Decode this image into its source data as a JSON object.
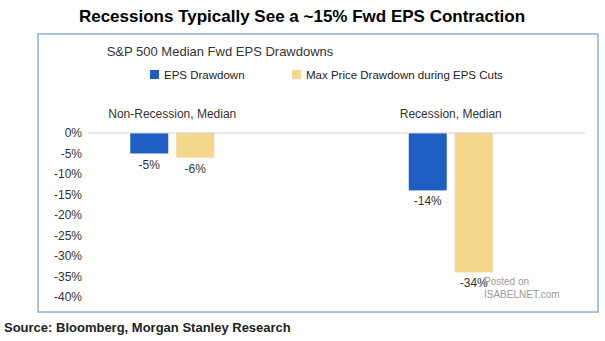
{
  "chart_data": {
    "type": "bar",
    "title": "Recessions Typically See a ~15% Fwd EPS Contraction",
    "subtitle": "S&P 500 Median Fwd EPS Drawdowns",
    "source": "Source: Bloomberg, Morgan Stanley Research",
    "annotations": [
      "Posted on",
      "ISABELNET.com"
    ],
    "categories": [
      "Non-Recession, Median",
      "Recession, Median"
    ],
    "series": [
      {
        "name": "EPS Drawdown",
        "color": "#1f5fc4",
        "values": [
          -5,
          -14
        ],
        "value_labels": [
          "-5%",
          "-14%"
        ]
      },
      {
        "name": "Max Price Drawdown during EPS Cuts",
        "color": "#f5d88c",
        "values": [
          -6,
          -34
        ],
        "value_labels": [
          "-6%",
          "-34%"
        ]
      }
    ],
    "ylim": [
      -40,
      0
    ],
    "yticks": [
      {
        "value": 0,
        "label": "0%"
      },
      {
        "value": -5,
        "label": "-5%"
      },
      {
        "value": -10,
        "label": "-10%"
      },
      {
        "value": -15,
        "label": "-15%"
      },
      {
        "value": -20,
        "label": "-20%"
      },
      {
        "value": -25,
        "label": "-25%"
      },
      {
        "value": -30,
        "label": "-30%"
      },
      {
        "value": -35,
        "label": "-35%"
      },
      {
        "value": -40,
        "label": "-40%"
      }
    ],
    "grid": false,
    "legend": "top",
    "data_labels": true
  }
}
